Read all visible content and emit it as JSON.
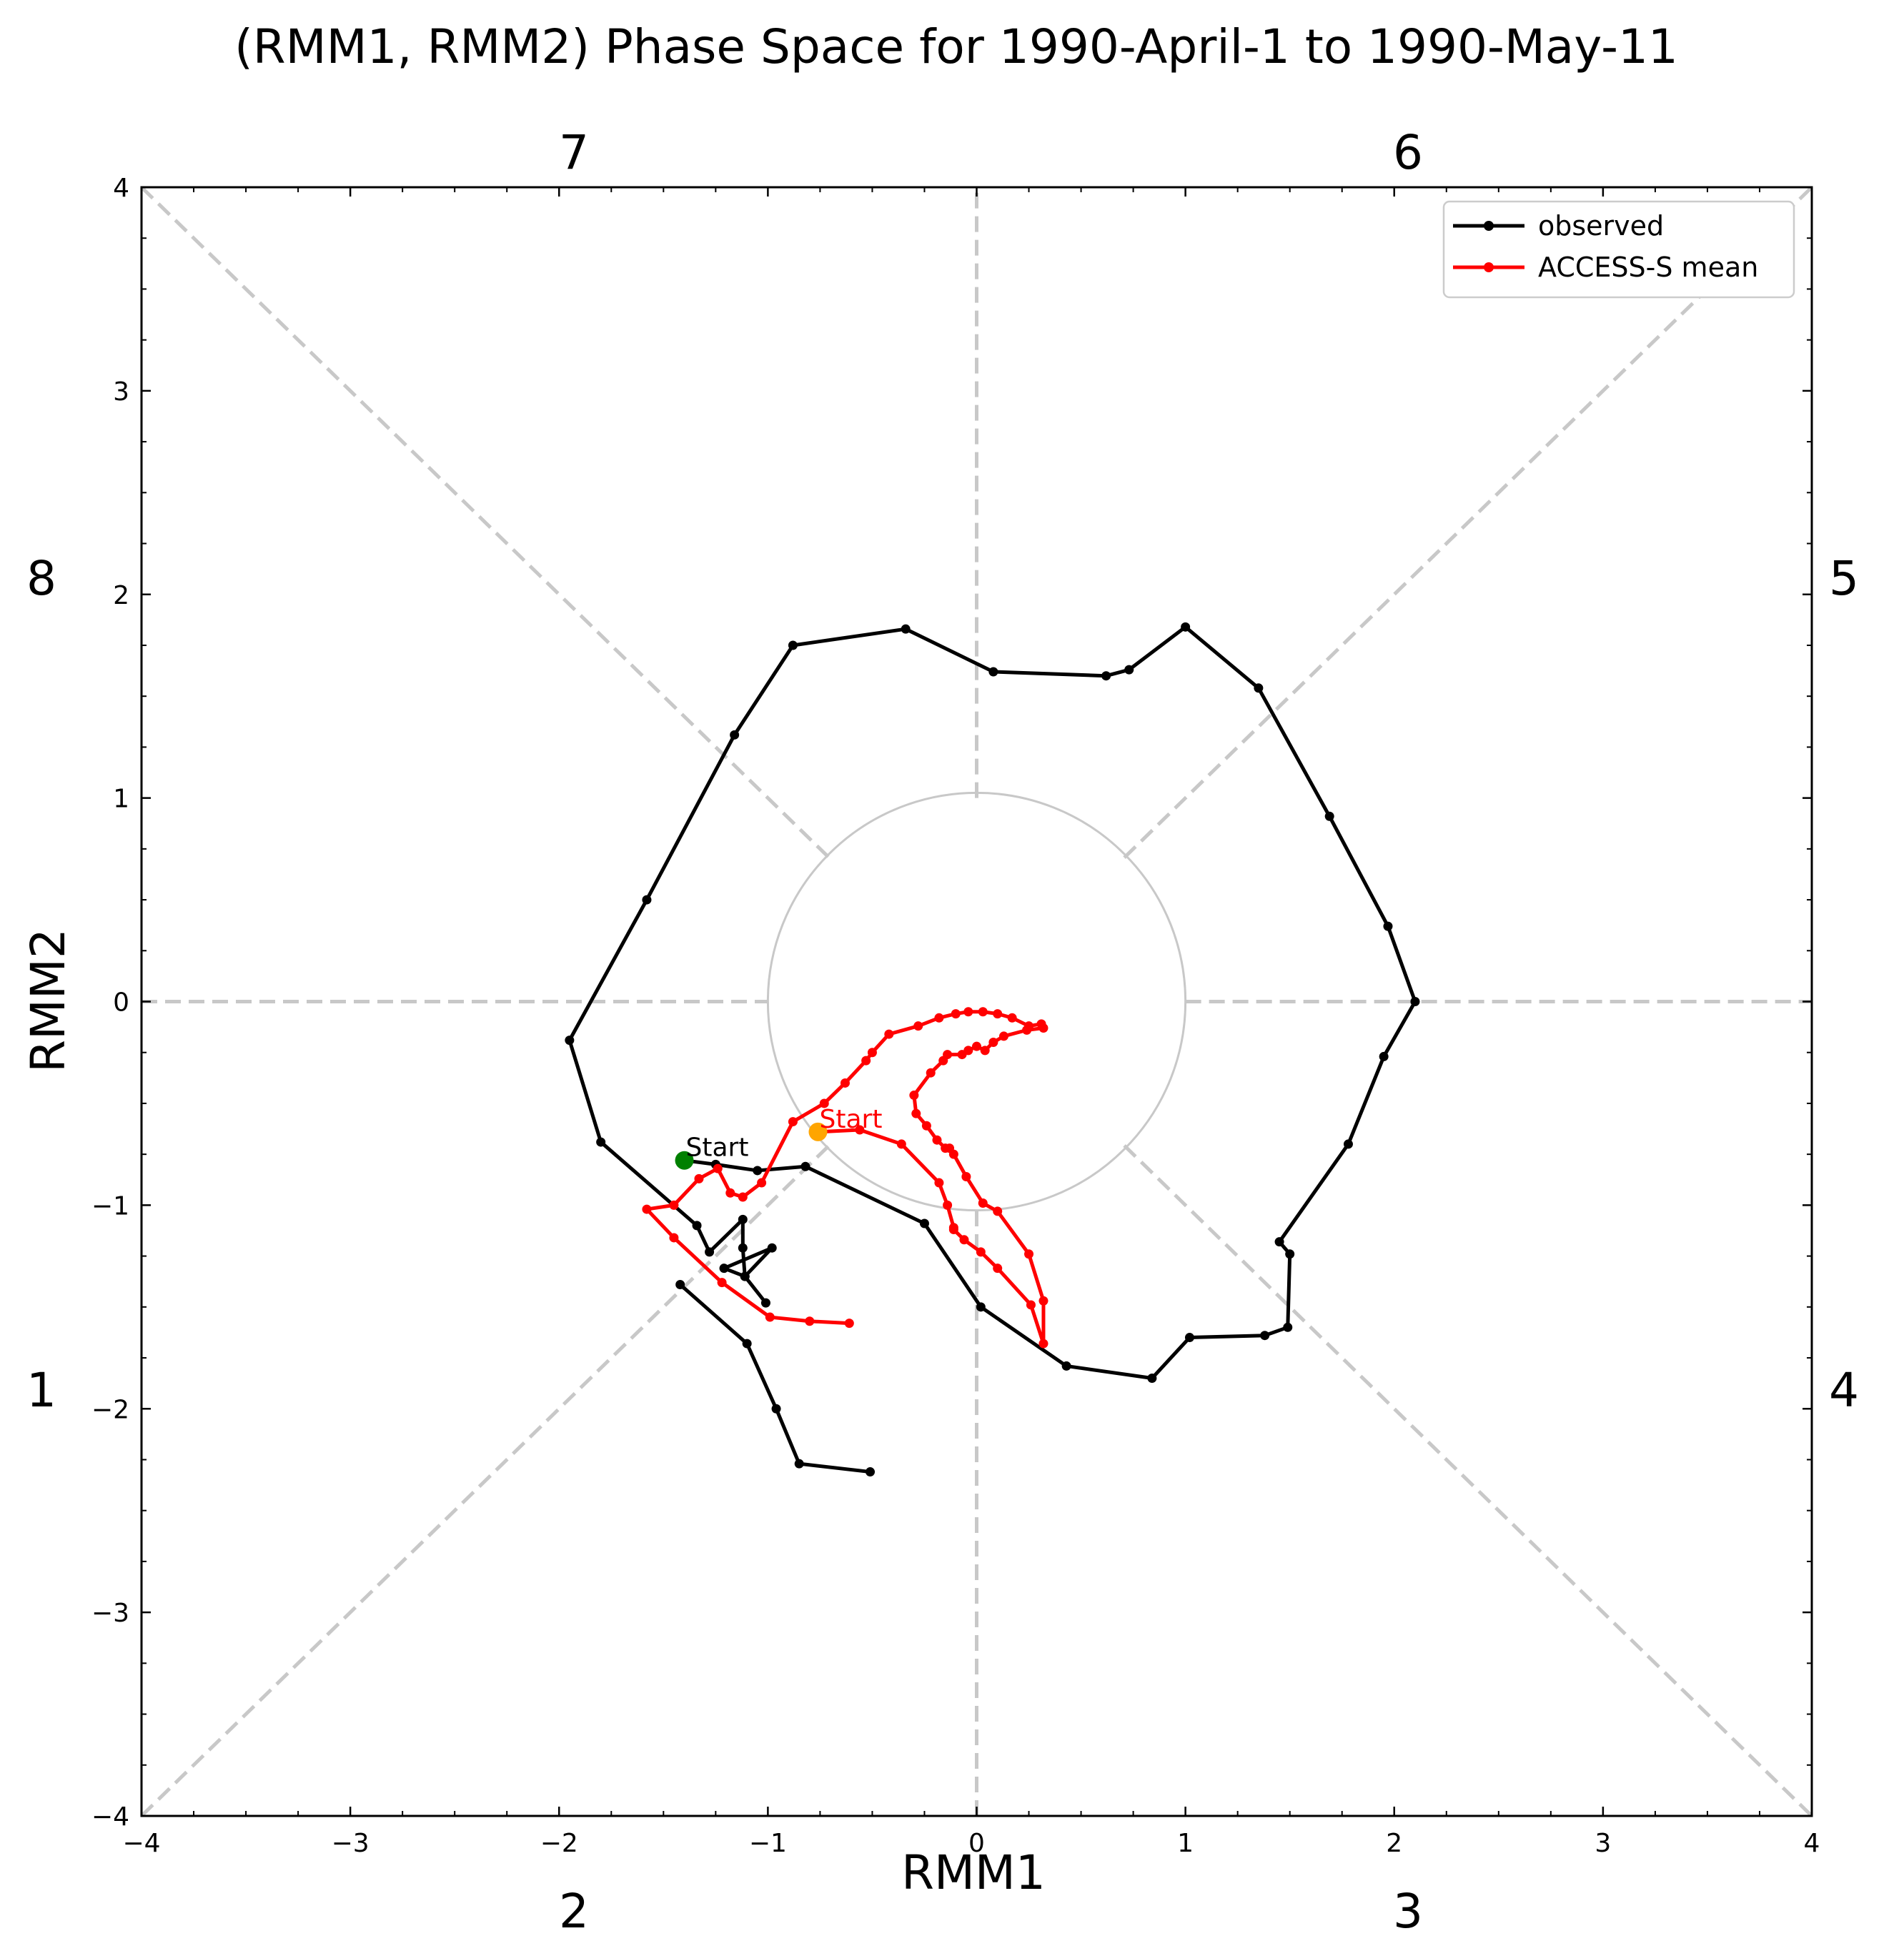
{
  "chart_data": {
    "type": "line",
    "title": "(RMM1, RMM2) Phase Space for 1990-April-1 to 1990-May-11",
    "xlabel": "RMM1",
    "ylabel": "RMM2",
    "xlim": [
      -4,
      4
    ],
    "ylim": [
      -4,
      4
    ],
    "xticks": [
      -4,
      -3,
      -2,
      -1,
      0,
      1,
      2,
      3,
      4
    ],
    "yticks": [
      -4,
      -3,
      -2,
      -1,
      0,
      1,
      2,
      3,
      4
    ],
    "xtick_labels": [
      "−4",
      "−3",
      "−2",
      "−1",
      "0",
      "1",
      "2",
      "3",
      "4"
    ],
    "ytick_labels": [
      "−4",
      "−3",
      "−2",
      "−1",
      "0",
      "1",
      "2",
      "3",
      "4"
    ],
    "grid": false,
    "legend_position": "top-right",
    "unit_circle_radius": 1,
    "phase_labels": {
      "top_left": "7",
      "top_right": "6",
      "right_upper": "5",
      "right_lower": "4",
      "bottom_right": "3",
      "bottom_left": "2",
      "left_lower": "1",
      "left_upper": "8"
    },
    "series": [
      {
        "name": "observed",
        "color": "#000000",
        "start_label": "Start",
        "start_marker_color": "#008000",
        "x": [
          -1.4,
          -1.25,
          -1.05,
          -0.82,
          -0.25,
          0.02,
          0.43,
          0.84,
          1.02,
          1.38,
          1.49,
          1.5,
          1.45,
          1.78,
          1.95,
          2.1,
          1.97,
          1.69,
          1.35,
          1.0,
          0.73,
          0.62,
          0.08,
          -0.34,
          -0.88,
          -1.16,
          -1.58,
          -1.95,
          -1.8,
          -1.34,
          -1.28,
          -1.12,
          -1.12,
          -1.11,
          -0.98,
          -1.21,
          -1.11,
          -1.01
        ],
        "y": [
          -0.78,
          -0.8,
          -0.83,
          -0.81,
          -1.09,
          -1.5,
          -1.79,
          -1.85,
          -1.65,
          -1.64,
          -1.6,
          -1.24,
          -1.18,
          -0.7,
          -0.27,
          0.0,
          0.37,
          0.91,
          1.54,
          1.84,
          1.63,
          1.6,
          1.62,
          1.83,
          1.75,
          1.31,
          0.5,
          -0.19,
          -0.69,
          -1.1,
          -1.23,
          -1.07,
          -1.21,
          -1.35,
          -1.21,
          -1.31,
          -1.35,
          -1.48
        ],
        "tail_x": [
          -1.42,
          -1.1,
          -0.96,
          -0.85,
          -0.51
        ],
        "tail_y": [
          -1.39,
          -1.68,
          -2.0,
          -2.27,
          -2.31
        ]
      },
      {
        "name": "ACCESS-S mean",
        "color": "#ff0000",
        "start_label": "Start",
        "start_marker_color": "#ffa500",
        "x": [
          -0.76,
          -0.56,
          -0.36,
          -0.18,
          -0.14,
          -0.11,
          -0.11,
          -0.06,
          0.02,
          0.1,
          0.26,
          0.32,
          0.32,
          0.25,
          0.1,
          0.03,
          -0.05,
          -0.11,
          -0.13,
          -0.15,
          -0.19,
          -0.24,
          -0.29,
          -0.3,
          -0.22,
          -0.16,
          -0.14,
          -0.07,
          -0.04,
          0.0,
          0.04,
          0.08,
          0.13,
          0.24,
          0.32,
          0.31,
          0.25,
          0.17,
          0.1,
          0.03,
          -0.04,
          -0.1,
          -0.18,
          -0.28,
          -0.42,
          -0.5,
          -0.53,
          -0.63,
          -0.73,
          -0.88,
          -1.03,
          -1.12,
          -1.18,
          -1.24,
          -1.33,
          -1.45,
          -1.58,
          -1.45,
          -1.22,
          -0.99,
          -0.8,
          -0.61
        ],
        "y": [
          -0.64,
          -0.63,
          -0.7,
          -0.89,
          -1.0,
          -1.11,
          -1.12,
          -1.17,
          -1.23,
          -1.31,
          -1.49,
          -1.68,
          -1.47,
          -1.24,
          -1.03,
          -0.99,
          -0.86,
          -0.75,
          -0.72,
          -0.72,
          -0.68,
          -0.61,
          -0.55,
          -0.46,
          -0.35,
          -0.29,
          -0.26,
          -0.26,
          -0.24,
          -0.22,
          -0.24,
          -0.2,
          -0.17,
          -0.14,
          -0.13,
          -0.11,
          -0.12,
          -0.08,
          -0.06,
          -0.05,
          -0.05,
          -0.06,
          -0.08,
          -0.12,
          -0.16,
          -0.25,
          -0.29,
          -0.4,
          -0.5,
          -0.59,
          -0.89,
          -0.96,
          -0.94,
          -0.82,
          -0.87,
          -1.0,
          -1.02,
          -1.16,
          -1.38,
          -1.55,
          -1.57,
          -1.58
        ]
      }
    ]
  }
}
